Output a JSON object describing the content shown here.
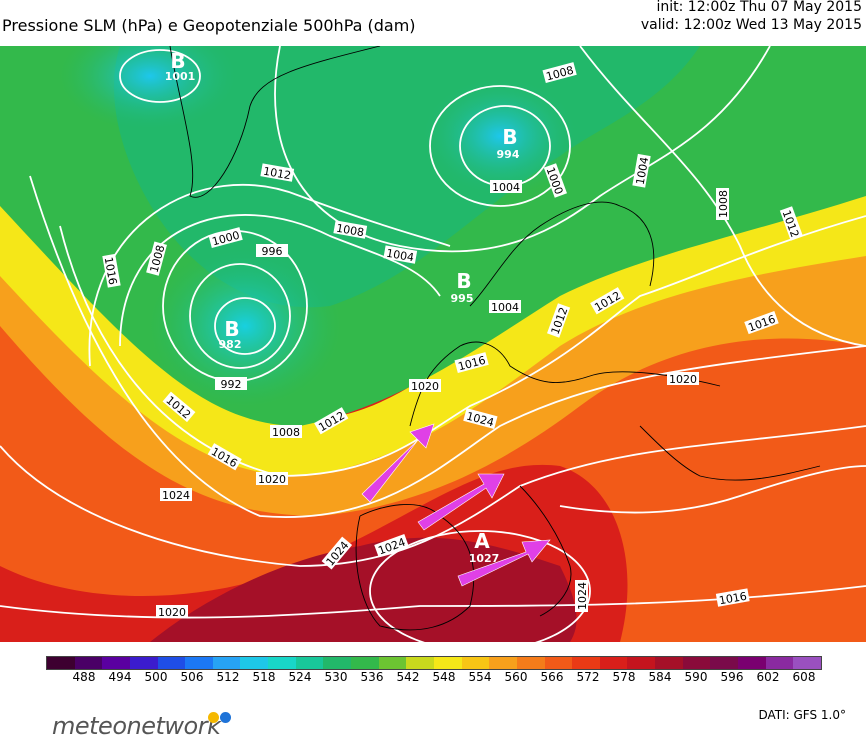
{
  "title": "Pressione SLM (hPa) e Geopotenziale 500hPa (dam)",
  "init": "init: 12:00z Thu 07 May 2015",
  "valid": "valid: 12:00z Wed 13 May 2015",
  "scale_ticks": [
    "488",
    "494",
    "500",
    "506",
    "512",
    "518",
    "524",
    "530",
    "536",
    "542",
    "548",
    "554",
    "560",
    "566",
    "572",
    "578",
    "584",
    "590",
    "596",
    "602",
    "608"
  ],
  "scale_colors": [
    "#3d0030",
    "#4a0066",
    "#5a00a0",
    "#3b1ccd",
    "#1f4ee6",
    "#1c78f5",
    "#27a3f5",
    "#1ec7e8",
    "#18d6c8",
    "#18c79a",
    "#22b86a",
    "#33b94b",
    "#6cc432",
    "#c9d91d",
    "#f5e718",
    "#f7c515",
    "#f7a01c",
    "#f57c1a",
    "#f25a18",
    "#ea3a15",
    "#d91f1a",
    "#c4141e",
    "#a51028",
    "#8a0b3a",
    "#7a0a4a",
    "#7a0070",
    "#8a2aa0",
    "#9a50c0"
  ],
  "pressure_labels": [
    {
      "text": "1001",
      "lbl": "B"
    },
    {
      "text": "994",
      "lbl": "B"
    },
    {
      "text": "995",
      "lbl": "B"
    },
    {
      "text": "982",
      "lbl": "B"
    },
    {
      "text": "1027",
      "lbl": "A"
    }
  ],
  "isobar_labels": [
    "1008",
    "1004",
    "1000",
    "1004",
    "1008",
    "1012",
    "1012",
    "1008",
    "1000",
    "996",
    "1004",
    "1016",
    "1008",
    "1012",
    "1016",
    "1012",
    "1004",
    "992",
    "1012",
    "1008",
    "1016",
    "1024",
    "1020",
    "1020",
    "1016",
    "1012",
    "1024",
    "1024",
    "1024",
    "1020",
    "1020",
    "1016",
    "1024"
  ],
  "logo_text": "meteonetwork",
  "logo_dot_colors": [
    "#f5b800",
    "#1e73d8"
  ],
  "credit": "DATI: GFS 1.0°"
}
